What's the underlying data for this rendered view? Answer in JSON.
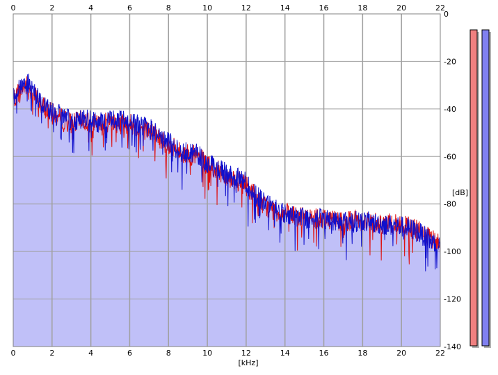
{
  "chart_data": {
    "type": "area",
    "xlabel": "[kHz]",
    "ylabel": "[dB]",
    "xlim": [
      0,
      22
    ],
    "ylim": [
      -140,
      0
    ],
    "x_ticks": [
      0,
      2,
      4,
      6,
      8,
      10,
      12,
      14,
      16,
      18,
      20,
      22
    ],
    "y_ticks": [
      0,
      -20,
      -40,
      -60,
      -80,
      -100,
      -120,
      -140
    ],
    "y_tick_labels": [
      "0",
      "-20",
      "-40",
      "-60",
      "-80",
      "-100",
      "-120",
      "-140"
    ],
    "x_ticks_top": true,
    "y_axis_side": "right",
    "grid": true,
    "background": "#ffffff",
    "fill_color": "#c0c0f8",
    "grid_color": "#a0a0a0",
    "series": [
      {
        "color": "#dd1111",
        "x": [
          0,
          0.25,
          0.5,
          0.75,
          1,
          1.5,
          2,
          2.5,
          3,
          3.5,
          4,
          4.5,
          5,
          5.5,
          6,
          6.5,
          7,
          7.5,
          8,
          8.5,
          9,
          9.5,
          10,
          10.5,
          11,
          11.5,
          12,
          12.5,
          13,
          13.5,
          14,
          14.5,
          15,
          15.5,
          16,
          16.5,
          17,
          17.5,
          18,
          18.5,
          19,
          19.5,
          20,
          20.5,
          21,
          21.5,
          22
        ],
        "y": [
          -36,
          -33,
          -31,
          -30,
          -33,
          -39,
          -42,
          -44,
          -46,
          -45,
          -46,
          -47,
          -45,
          -46,
          -46,
          -48,
          -49,
          -52,
          -55,
          -58,
          -59,
          -60,
          -64,
          -66,
          -68,
          -70,
          -72,
          -77,
          -81,
          -83,
          -84,
          -85,
          -86,
          -86,
          -86,
          -86.5,
          -87,
          -87,
          -87,
          -87.5,
          -88,
          -88.5,
          -89,
          -90,
          -92,
          -95,
          -97
        ]
      },
      {
        "color": "#1010cc",
        "x": [
          0,
          0.25,
          0.5,
          0.75,
          1,
          1.5,
          2,
          2.5,
          3,
          3.5,
          4,
          4.5,
          5,
          5.5,
          6,
          6.5,
          7,
          7.5,
          8,
          8.5,
          9,
          9.5,
          10,
          10.5,
          11,
          11.5,
          12,
          12.5,
          13,
          13.5,
          14,
          14.5,
          15,
          15.5,
          16,
          16.5,
          17,
          17.5,
          18,
          18.5,
          19,
          19.5,
          20,
          20.5,
          21,
          21.5,
          22
        ],
        "y": [
          -35,
          -32,
          -30,
          -29,
          -32,
          -38,
          -41,
          -43,
          -45,
          -44,
          -45,
          -46,
          -44,
          -45,
          -45,
          -47,
          -48,
          -51,
          -54,
          -57,
          -58,
          -59,
          -63,
          -65,
          -67,
          -69,
          -71,
          -76,
          -80,
          -82,
          -84,
          -85,
          -86,
          -86.5,
          -86,
          -87,
          -87,
          -87.5,
          -87,
          -88,
          -88.5,
          -89,
          -89.5,
          -90.5,
          -92.5,
          -95.5,
          -98
        ]
      }
    ],
    "level_meters": [
      {
        "color": "#f08080",
        "level_fraction": 1.0
      },
      {
        "color": "#8080f0",
        "level_fraction": 1.0
      }
    ]
  }
}
